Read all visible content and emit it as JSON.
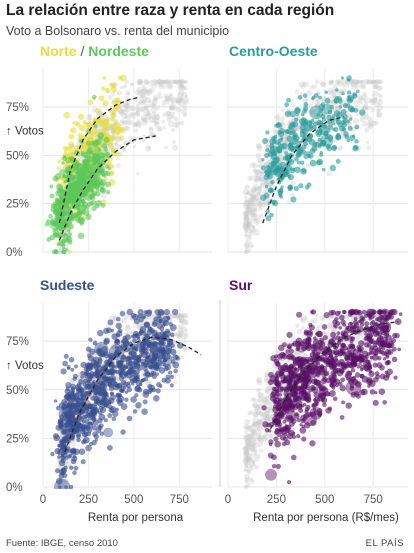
{
  "header": {
    "title": "La relación entre raza y renta en cada región",
    "subtitle": "Voto a Bolsonaro vs. renta del municipio"
  },
  "footer": {
    "source": "Fuente: IBGE, censo 2010",
    "credit": "EL PAÍS"
  },
  "colors": {
    "background_points": "#c8c8c8",
    "norte": "#e8de3a",
    "nordeste": "#5cc85a",
    "centro_oeste": "#2a9c9c",
    "sudeste": "#3a4f8f",
    "sur": "#5a1068",
    "trend": "#222222",
    "axis_text": "#555555"
  },
  "chart_data": [
    {
      "type": "scatter",
      "panel": "Norte / Nordeste",
      "title_parts": [
        {
          "text": "Norte",
          "color_key": "norte"
        },
        {
          "text": " / ",
          "color_key": "axis_text"
        },
        {
          "text": "Nordeste",
          "color_key": "nordeste"
        }
      ],
      "xlabel": "",
      "ylabel": "↑ Votos",
      "xlim": [
        0,
        930
      ],
      "ylim": [
        0,
        0.9
      ],
      "xticks": [
        "0",
        "250",
        "500",
        "750"
      ],
      "yticks": [
        "0%",
        "25%",
        "50%",
        "75%"
      ],
      "show_xticks": false,
      "series": [
        {
          "name": "Norte",
          "color_key": "norte",
          "x_range": [
            110,
            420
          ],
          "y_center": [
            0.25,
            0.65
          ],
          "spread": 0.13,
          "count": 260
        },
        {
          "name": "Nordeste",
          "color_key": "nordeste",
          "x_range": [
            80,
            330
          ],
          "y_center": [
            0.1,
            0.45
          ],
          "spread": 0.09,
          "count": 520
        }
      ],
      "trend_lines": [
        {
          "x": [
            90,
            150,
            220,
            300,
            400,
            480,
            530
          ],
          "y": [
            0.15,
            0.42,
            0.58,
            0.69,
            0.76,
            0.79,
            0.8
          ]
        },
        {
          "x": [
            90,
            150,
            220,
            300,
            400,
            500,
            620
          ],
          "y": [
            0.06,
            0.2,
            0.32,
            0.43,
            0.52,
            0.58,
            0.6
          ]
        }
      ]
    },
    {
      "type": "scatter",
      "panel": "Centro-Oeste",
      "title_parts": [
        {
          "text": "Centro-Oeste",
          "color_key": "centro_oeste"
        }
      ],
      "xlabel": "",
      "ylabel": "",
      "xlim": [
        0,
        930
      ],
      "ylim": [
        0,
        0.9
      ],
      "xticks": [
        "0",
        "250",
        "500",
        "750"
      ],
      "yticks": [
        "0%",
        "25%",
        "50%",
        "75%"
      ],
      "show_xticks": false,
      "series": [
        {
          "name": "Centro-Oeste",
          "color_key": "centro_oeste",
          "x_range": [
            220,
            650
          ],
          "y_center": [
            0.35,
            0.72
          ],
          "spread": 0.1,
          "count": 320
        }
      ],
      "trend_lines": [
        {
          "x": [
            180,
            250,
            330,
            420,
            520,
            600
          ],
          "y": [
            0.15,
            0.34,
            0.5,
            0.61,
            0.68,
            0.7
          ]
        }
      ]
    },
    {
      "type": "scatter",
      "panel": "Sudeste",
      "title_parts": [
        {
          "text": "Sudeste",
          "color_key": "sudeste"
        }
      ],
      "xlabel": "Renta por persona",
      "ylabel": "↑ Votos",
      "xlim": [
        0,
        930
      ],
      "ylim": [
        0,
        0.9
      ],
      "xticks": [
        "0",
        "250",
        "500",
        "750"
      ],
      "yticks": [
        "0%",
        "25%",
        "50%",
        "75%"
      ],
      "show_xticks": true,
      "series": [
        {
          "name": "Sudeste",
          "color_key": "sudeste",
          "x_range": [
            110,
            720
          ],
          "y_center": [
            0.2,
            0.75
          ],
          "spread": 0.11,
          "count": 900
        }
      ],
      "trend_lines": [
        {
          "x": [
            120,
            200,
            300,
            400,
            500,
            600,
            700,
            800,
            870
          ],
          "y": [
            0.18,
            0.38,
            0.55,
            0.67,
            0.74,
            0.77,
            0.76,
            0.72,
            0.68
          ]
        }
      ]
    },
    {
      "type": "scatter",
      "panel": "Sur",
      "title_parts": [
        {
          "text": "Sur",
          "color_key": "sur"
        }
      ],
      "xlabel": "Renta por persona (R$/mes)",
      "ylabel": "",
      "xlim": [
        0,
        930
      ],
      "ylim": [
        0,
        0.9
      ],
      "xticks": [
        "0",
        "250",
        "500",
        "750"
      ],
      "yticks": [
        "0%",
        "25%",
        "50%",
        "75%"
      ],
      "show_xticks": true,
      "series": [
        {
          "name": "Sur",
          "color_key": "sur",
          "x_range": [
            250,
            850
          ],
          "y_center": [
            0.35,
            0.78
          ],
          "spread": 0.12,
          "count": 900
        }
      ],
      "trend_lines": [
        {
          "x": [
            220,
            300,
            400,
            500,
            600,
            700,
            800,
            880
          ],
          "y": [
            0.3,
            0.46,
            0.6,
            0.7,
            0.77,
            0.81,
            0.84,
            0.85
          ]
        }
      ]
    }
  ]
}
